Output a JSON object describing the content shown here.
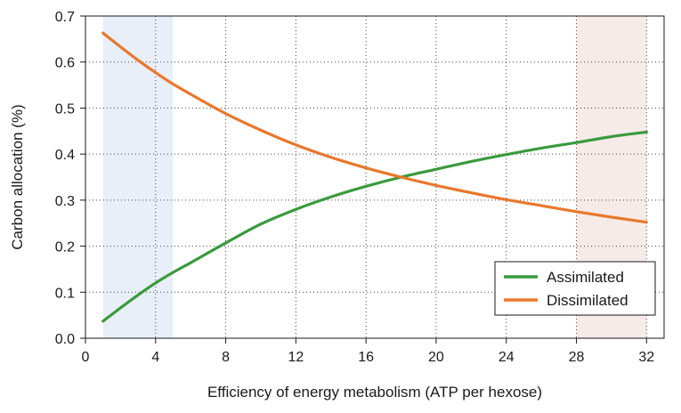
{
  "chart_data": {
    "type": "line",
    "xlabel": "Efficiency of energy metabolism (ATP per hexose)",
    "ylabel": "Carbon allocation (%)",
    "xlim": [
      0,
      33
    ],
    "ylim": [
      0,
      0.7
    ],
    "xticks": [
      "0",
      "4",
      "8",
      "12",
      "16",
      "20",
      "24",
      "28",
      "32"
    ],
    "yticks": [
      "0.0",
      "0.1",
      "0.2",
      "0.3",
      "0.4",
      "0.5",
      "0.6",
      "0.7"
    ],
    "grid": "dotted",
    "legend_position": "bottom-right",
    "shaded_regions": [
      {
        "x_start": 1,
        "x_end": 5,
        "color": "#e8eff8"
      },
      {
        "x_start": 28,
        "x_end": 32,
        "color": "#f6ebe8"
      }
    ],
    "series": [
      {
        "name": "Assimilated",
        "color": "#3a9a3e",
        "x": [
          1,
          2,
          3,
          4,
          5,
          6,
          8,
          10,
          12,
          14,
          16,
          18,
          20,
          22,
          24,
          26,
          28,
          30,
          32
        ],
        "y": [
          0.037,
          0.066,
          0.094,
          0.12,
          0.143,
          0.164,
          0.207,
          0.248,
          0.28,
          0.307,
          0.33,
          0.35,
          0.367,
          0.384,
          0.399,
          0.413,
          0.425,
          0.438,
          0.448
        ]
      },
      {
        "name": "Dissimilated",
        "color": "#e8782c",
        "x": [
          1,
          2,
          3,
          4,
          5,
          6,
          8,
          10,
          12,
          14,
          16,
          18,
          20,
          22,
          24,
          26,
          28,
          30,
          32
        ],
        "y": [
          0.663,
          0.633,
          0.604,
          0.577,
          0.552,
          0.53,
          0.488,
          0.452,
          0.42,
          0.393,
          0.37,
          0.35,
          0.332,
          0.316,
          0.301,
          0.288,
          0.275,
          0.263,
          0.252
        ]
      }
    ]
  }
}
